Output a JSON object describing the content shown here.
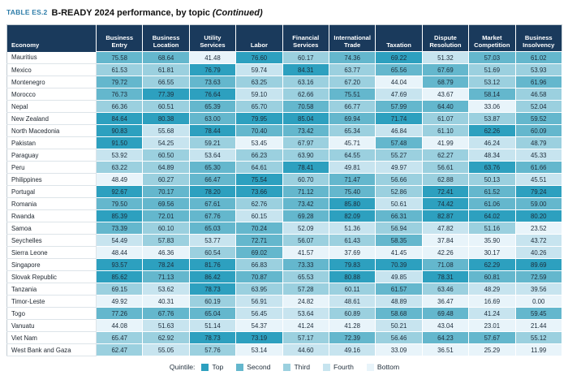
{
  "header": {
    "table_label": "TABLE ES.2",
    "title": "B-READY 2024 performance, by topic",
    "continued": "(Continued)"
  },
  "colors": {
    "header_bg": "#1a3a5c",
    "title_accent": "#2e7da9",
    "quintile": {
      "1": "#2da0bf",
      "2": "#64b7cd",
      "3": "#9bd0df",
      "4": "#c7e4ef",
      "5": "#e8f4fa"
    }
  },
  "table": {
    "columns": [
      "Economy",
      "Business Entry",
      "Business Location",
      "Utility Services",
      "Labor",
      "Financial Services",
      "International Trade",
      "Taxation",
      "Dispute Resolution",
      "Market Competition",
      "Business Insolvency"
    ],
    "rows": [
      {
        "economy": "Mauritius",
        "values": [
          "75.58",
          "68.64",
          "41.48",
          "76.60",
          "60.17",
          "74.36",
          "69.22",
          "51.32",
          "57.03",
          "61.02"
        ],
        "quintiles": [
          2,
          2,
          5,
          1,
          3,
          2,
          1,
          4,
          2,
          2
        ]
      },
      {
        "economy": "Mexico",
        "values": [
          "61.53",
          "61.81",
          "76.79",
          "59.74",
          "84.31",
          "63.77",
          "65.56",
          "67.69",
          "51.69",
          "53.93"
        ],
        "quintiles": [
          3,
          3,
          1,
          4,
          1,
          3,
          2,
          2,
          3,
          3
        ]
      },
      {
        "economy": "Montenegro",
        "values": [
          "79.72",
          "66.55",
          "73.63",
          "63.25",
          "63.16",
          "67.20",
          "44.04",
          "68.79",
          "53.12",
          "61.96"
        ],
        "quintiles": [
          2,
          3,
          2,
          3,
          3,
          3,
          5,
          2,
          3,
          2
        ]
      },
      {
        "economy": "Morocco",
        "values": [
          "76.73",
          "77.39",
          "76.64",
          "59.10",
          "62.66",
          "75.51",
          "47.69",
          "43.67",
          "58.14",
          "46.58"
        ],
        "quintiles": [
          2,
          1,
          1,
          4,
          3,
          2,
          4,
          5,
          2,
          3
        ]
      },
      {
        "economy": "Nepal",
        "values": [
          "66.36",
          "60.51",
          "65.39",
          "65.70",
          "70.58",
          "66.77",
          "57.99",
          "64.40",
          "33.06",
          "52.04"
        ],
        "quintiles": [
          3,
          3,
          2,
          3,
          2,
          3,
          2,
          2,
          5,
          3
        ]
      },
      {
        "economy": "New Zealand",
        "values": [
          "84.64",
          "80.38",
          "63.00",
          "79.95",
          "85.04",
          "69.94",
          "71.74",
          "61.07",
          "53.87",
          "59.52"
        ],
        "quintiles": [
          1,
          1,
          2,
          1,
          1,
          2,
          1,
          3,
          3,
          2
        ]
      },
      {
        "economy": "North Macedonia",
        "values": [
          "90.83",
          "55.68",
          "78.44",
          "70.40",
          "73.42",
          "65.34",
          "46.84",
          "61.10",
          "62.26",
          "60.09"
        ],
        "quintiles": [
          1,
          4,
          1,
          2,
          2,
          3,
          4,
          3,
          1,
          2
        ]
      },
      {
        "economy": "Pakistan",
        "values": [
          "91.50",
          "54.25",
          "59.21",
          "53.45",
          "67.97",
          "45.71",
          "57.48",
          "41.99",
          "46.24",
          "48.79"
        ],
        "quintiles": [
          1,
          4,
          3,
          5,
          3,
          5,
          2,
          5,
          4,
          3
        ]
      },
      {
        "economy": "Paraguay",
        "values": [
          "53.92",
          "60.50",
          "53.64",
          "66.23",
          "63.90",
          "64.55",
          "55.27",
          "62.27",
          "48.34",
          "45.33"
        ],
        "quintiles": [
          4,
          3,
          4,
          3,
          3,
          3,
          3,
          3,
          4,
          4
        ]
      },
      {
        "economy": "Peru",
        "values": [
          "63.22",
          "64.89",
          "65.30",
          "64.61",
          "78.41",
          "49.81",
          "49.97",
          "56.61",
          "63.76",
          "61.66"
        ],
        "quintiles": [
          3,
          3,
          2,
          3,
          1,
          4,
          4,
          3,
          1,
          2
        ]
      },
      {
        "economy": "Philippines",
        "values": [
          "48.49",
          "60.27",
          "66.47",
          "75.54",
          "60.70",
          "71.47",
          "56.66",
          "62.88",
          "50.13",
          "45.51"
        ],
        "quintiles": [
          5,
          3,
          2,
          1,
          3,
          2,
          3,
          3,
          3,
          4
        ]
      },
      {
        "economy": "Portugal",
        "values": [
          "92.67",
          "70.17",
          "78.20",
          "73.66",
          "71.12",
          "75.40",
          "52.86",
          "72.41",
          "61.52",
          "79.24"
        ],
        "quintiles": [
          1,
          2,
          1,
          1,
          2,
          2,
          3,
          1,
          2,
          1
        ]
      },
      {
        "economy": "Romania",
        "values": [
          "79.50",
          "69.56",
          "67.61",
          "62.76",
          "73.42",
          "85.80",
          "50.61",
          "74.42",
          "61.06",
          "59.00"
        ],
        "quintiles": [
          2,
          2,
          2,
          3,
          2,
          1,
          4,
          1,
          2,
          2
        ]
      },
      {
        "economy": "Rwanda",
        "values": [
          "85.39",
          "72.01",
          "67.76",
          "60.15",
          "69.28",
          "82.09",
          "66.31",
          "82.87",
          "64.02",
          "80.20"
        ],
        "quintiles": [
          1,
          2,
          2,
          4,
          2,
          1,
          2,
          1,
          1,
          1
        ]
      },
      {
        "economy": "Samoa",
        "values": [
          "73.39",
          "60.10",
          "65.03",
          "70.24",
          "52.09",
          "51.36",
          "56.94",
          "47.82",
          "51.16",
          "23.52"
        ],
        "quintiles": [
          2,
          3,
          2,
          2,
          4,
          4,
          3,
          4,
          3,
          5
        ]
      },
      {
        "economy": "Seychelles",
        "values": [
          "54.49",
          "57.83",
          "53.77",
          "72.71",
          "56.07",
          "61.43",
          "58.35",
          "37.84",
          "35.90",
          "43.72"
        ],
        "quintiles": [
          4,
          3,
          4,
          2,
          3,
          3,
          2,
          5,
          5,
          4
        ]
      },
      {
        "economy": "Sierra Leone",
        "values": [
          "48.44",
          "46.36",
          "60.54",
          "69.02",
          "41.57",
          "37.69",
          "41.45",
          "42.26",
          "30.17",
          "40.26"
        ],
        "quintiles": [
          5,
          5,
          3,
          2,
          5,
          5,
          5,
          5,
          5,
          4
        ]
      },
      {
        "economy": "Singapore",
        "values": [
          "93.57",
          "78.24",
          "81.76",
          "66.83",
          "73.33",
          "79.83",
          "70.39",
          "71.08",
          "62.29",
          "89.69"
        ],
        "quintiles": [
          1,
          1,
          1,
          3,
          2,
          1,
          1,
          2,
          1,
          1
        ]
      },
      {
        "economy": "Slovak Republic",
        "values": [
          "85.62",
          "71.13",
          "86.42",
          "70.87",
          "65.53",
          "80.88",
          "49.85",
          "78.31",
          "60.81",
          "72.59"
        ],
        "quintiles": [
          1,
          2,
          1,
          2,
          3,
          1,
          4,
          1,
          2,
          2
        ]
      },
      {
        "economy": "Tanzania",
        "values": [
          "69.15",
          "53.62",
          "78.73",
          "63.95",
          "57.28",
          "60.11",
          "61.57",
          "63.46",
          "48.29",
          "39.56"
        ],
        "quintiles": [
          3,
          4,
          1,
          3,
          3,
          3,
          2,
          3,
          4,
          4
        ]
      },
      {
        "economy": "Timor-Leste",
        "values": [
          "49.92",
          "40.31",
          "60.19",
          "56.91",
          "24.82",
          "48.61",
          "48.89",
          "36.47",
          "16.69",
          "0.00"
        ],
        "quintiles": [
          5,
          5,
          3,
          4,
          5,
          4,
          4,
          5,
          5,
          5
        ]
      },
      {
        "economy": "Togo",
        "values": [
          "77.26",
          "67.76",
          "65.04",
          "56.45",
          "53.64",
          "60.89",
          "58.68",
          "69.48",
          "41.24",
          "59.45"
        ],
        "quintiles": [
          2,
          2,
          2,
          4,
          4,
          3,
          2,
          2,
          4,
          2
        ]
      },
      {
        "economy": "Vanuatu",
        "values": [
          "44.08",
          "51.63",
          "51.14",
          "54.37",
          "41.24",
          "41.28",
          "50.21",
          "43.04",
          "23.01",
          "21.44"
        ],
        "quintiles": [
          5,
          4,
          4,
          5,
          5,
          5,
          4,
          5,
          5,
          5
        ]
      },
      {
        "economy": "Viet Nam",
        "values": [
          "65.47",
          "62.92",
          "78.73",
          "73.19",
          "57.17",
          "72.39",
          "56.46",
          "64.23",
          "57.67",
          "55.12"
        ],
        "quintiles": [
          3,
          3,
          1,
          1,
          3,
          2,
          3,
          2,
          2,
          3
        ]
      },
      {
        "economy": "West Bank and Gaza",
        "values": [
          "62.47",
          "55.05",
          "57.76",
          "53.14",
          "44.60",
          "49.16",
          "33.09",
          "36.51",
          "25.29",
          "11.99"
        ],
        "quintiles": [
          3,
          4,
          3,
          5,
          4,
          4,
          5,
          5,
          5,
          5
        ]
      }
    ]
  },
  "legend": {
    "label": "Quintile:",
    "items": [
      {
        "label": "Top",
        "quintile": 1
      },
      {
        "label": "Second",
        "quintile": 2
      },
      {
        "label": "Third",
        "quintile": 3
      },
      {
        "label": "Fourth",
        "quintile": 4
      },
      {
        "label": "Bottom",
        "quintile": 5
      }
    ]
  }
}
